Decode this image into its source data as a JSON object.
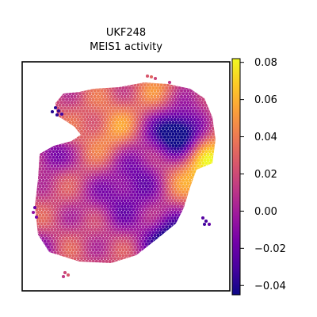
{
  "chart_data": {
    "type": "heatmap",
    "title": "UKF248",
    "subtitle": "MEIS1 activity",
    "xlabel": "",
    "ylabel": "",
    "colormap": "plasma",
    "colorbar": {
      "vmin": -0.045,
      "vmax": 0.082,
      "ticks": [
        {
          "value": 0.08,
          "label": "0.08"
        },
        {
          "value": 0.06,
          "label": "0.06"
        },
        {
          "value": 0.04,
          "label": "0.04"
        },
        {
          "value": 0.02,
          "label": "0.02"
        },
        {
          "value": 0.0,
          "label": "0.00"
        },
        {
          "value": -0.02,
          "label": "−0.02"
        },
        {
          "value": -0.04,
          "label": "−0.04"
        }
      ]
    },
    "grid": false,
    "legend": "colorbar-right"
  }
}
